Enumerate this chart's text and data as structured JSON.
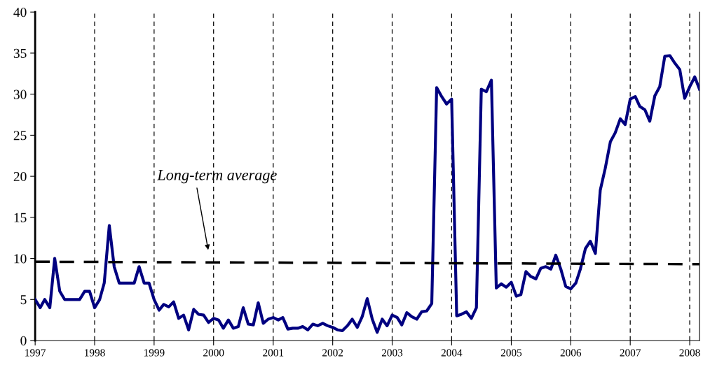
{
  "chart_data": {
    "type": "line",
    "x": [
      "1997-01",
      "1997-02",
      "1997-03",
      "1997-04",
      "1997-05",
      "1997-06",
      "1997-07",
      "1997-08",
      "1997-09",
      "1997-10",
      "1997-11",
      "1997-12",
      "1998-01",
      "1998-02",
      "1998-03",
      "1998-04",
      "1998-05",
      "1998-06",
      "1998-07",
      "1998-08",
      "1998-09",
      "1998-10",
      "1998-11",
      "1998-12",
      "1999-01",
      "1999-02",
      "1999-03",
      "1999-04",
      "1999-05",
      "1999-06",
      "1999-07",
      "1999-08",
      "1999-09",
      "1999-10",
      "1999-11",
      "1999-12",
      "2000-01",
      "2000-02",
      "2000-03",
      "2000-04",
      "2000-05",
      "2000-06",
      "2000-07",
      "2000-08",
      "2000-09",
      "2000-10",
      "2000-11",
      "2000-12",
      "2001-01",
      "2001-02",
      "2001-03",
      "2001-04",
      "2001-05",
      "2001-06",
      "2001-07",
      "2001-08",
      "2001-09",
      "2001-10",
      "2001-11",
      "2001-12",
      "2002-01",
      "2002-02",
      "2002-03",
      "2002-04",
      "2002-05",
      "2002-06",
      "2002-07",
      "2002-08",
      "2002-09",
      "2002-10",
      "2002-11",
      "2002-12",
      "2003-01",
      "2003-02",
      "2003-03",
      "2003-04",
      "2003-05",
      "2003-06",
      "2003-07",
      "2003-08",
      "2003-09",
      "2003-10",
      "2003-11",
      "2003-12",
      "2004-01",
      "2004-02",
      "2004-03",
      "2004-04",
      "2004-05",
      "2004-06",
      "2004-07",
      "2004-08",
      "2004-09",
      "2004-10",
      "2004-11",
      "2004-12",
      "2005-01",
      "2005-02",
      "2005-03",
      "2005-04",
      "2005-05",
      "2005-06",
      "2005-07",
      "2005-08",
      "2005-09",
      "2005-10",
      "2005-11",
      "2005-12",
      "2006-01",
      "2006-02",
      "2006-03",
      "2006-04",
      "2006-05",
      "2006-06",
      "2006-07",
      "2006-08",
      "2006-09",
      "2006-10",
      "2006-11",
      "2006-12",
      "2007-01",
      "2007-02",
      "2007-03",
      "2007-04",
      "2007-05",
      "2007-06",
      "2007-07",
      "2007-08",
      "2007-09",
      "2007-10",
      "2007-11",
      "2007-12",
      "2008-01",
      "2008-02",
      "2008-03"
    ],
    "series": [
      {
        "color": "#000080",
        "values": [
          5,
          4,
          5,
          4,
          10,
          6,
          5,
          5,
          5,
          5,
          6,
          6,
          4,
          5,
          7,
          14,
          9,
          7,
          7,
          7,
          7,
          9,
          7,
          7,
          5,
          3.7,
          4.4,
          4.1,
          4.7,
          2.7,
          3.1,
          1.3,
          3.8,
          3.2,
          3.1,
          2.2,
          2.7,
          2.5,
          1.5,
          2.5,
          1.5,
          1.7,
          4.0,
          2.0,
          1.9,
          4.6,
          2.1,
          2.6,
          2.8,
          2.5,
          2.8,
          1.4,
          1.5,
          1.5,
          1.7,
          1.3,
          2.0,
          1.8,
          2.1,
          1.8,
          1.6,
          1.3,
          1.2,
          1.8,
          2.6,
          1.6,
          2.9,
          5.1,
          2.6,
          1.0,
          2.6,
          1.8,
          3.1,
          2.8,
          1.9,
          3.4,
          2.9,
          2.6,
          3.5,
          3.6,
          4.5,
          30.8,
          29.7,
          28.8,
          29.4,
          3.0,
          3.2,
          3.5,
          2.7,
          4.0,
          30.6,
          30.3,
          31.7,
          6.4,
          6.9,
          6.5,
          7.1,
          5.4,
          5.6,
          8.4,
          7.8,
          7.5,
          8.8,
          9.0,
          8.7,
          10.4,
          8.7,
          6.6,
          6.3,
          7.0,
          8.7,
          11.2,
          12.1,
          10.6,
          18.3,
          21.0,
          24.2,
          25.3,
          27.0,
          26.3,
          29.4,
          29.7,
          28.5,
          28.1,
          26.7,
          29.8,
          30.9,
          34.6,
          34.7,
          33.8,
          33.0,
          29.5,
          30.9,
          32.1,
          30.6
        ]
      },
      {
        "type": "line",
        "x": [
          "1997-01",
          "2008-03"
        ],
        "color": "#000000",
        "line_style": "dashed",
        "values": [
          9.6,
          9.3
        ]
      }
    ],
    "annotations": [
      "Long-term average"
    ],
    "xlim": [
      "1997-01",
      "2008-03"
    ],
    "xticks": [
      "1997",
      "1998",
      "1999",
      "2000",
      "2001",
      "2002",
      "2003",
      "2004",
      "2005",
      "2006",
      "2007",
      "2008"
    ],
    "ylim": [
      0,
      40
    ],
    "yticks": [
      0,
      5,
      10,
      15,
      20,
      25,
      30,
      35,
      40
    ],
    "grid": "x",
    "line_style": "solid"
  }
}
